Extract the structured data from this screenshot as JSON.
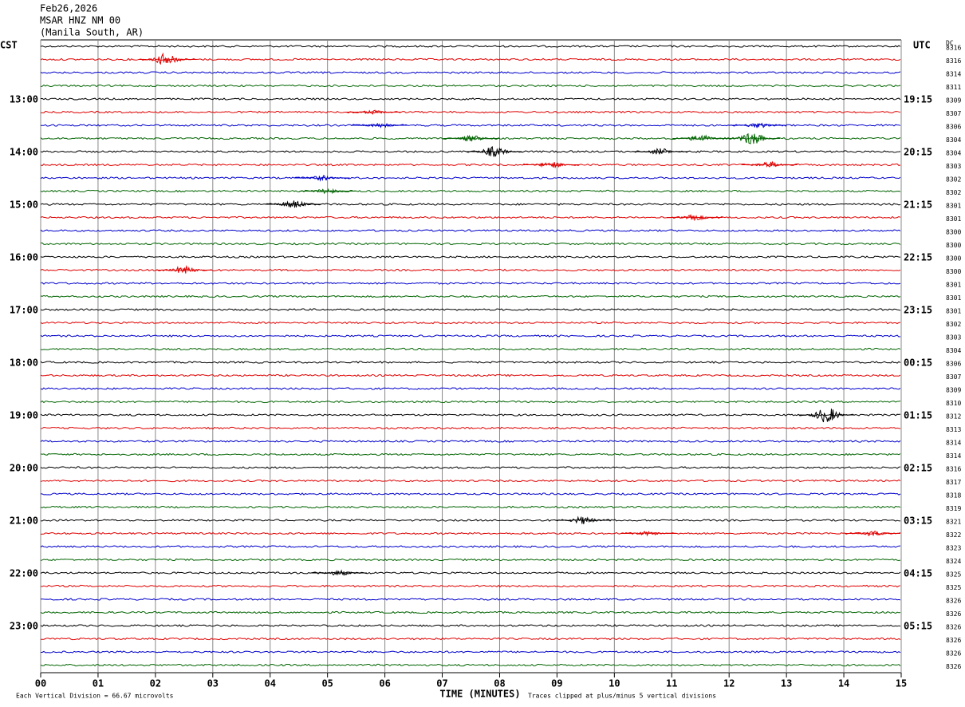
{
  "chart_data": {
    "type": "helicorder",
    "title": "Feb26,2026",
    "station": "MSAR HNZ NM 00",
    "location": "(Manila South, AR)",
    "left_axis_label": "CST",
    "right_axis_label": "UTC",
    "dc_label": "DC",
    "xlabel": "TIME (MINUTES)",
    "scale_note": "Each Vertical Division =   66.67 microvolts",
    "clip_note": "Traces clipped at plus/minus 5 vertical divisions",
    "xlim": [
      0,
      15
    ],
    "xticks": [
      {
        "value": 0,
        "label": "00"
      },
      {
        "value": 1,
        "label": "01"
      },
      {
        "value": 2,
        "label": "02"
      },
      {
        "value": 3,
        "label": "03"
      },
      {
        "value": 4,
        "label": "04"
      },
      {
        "value": 5,
        "label": "05"
      },
      {
        "value": 6,
        "label": "06"
      },
      {
        "value": 7,
        "label": "07"
      },
      {
        "value": 8,
        "label": "08"
      },
      {
        "value": 9,
        "label": "09"
      },
      {
        "value": 10,
        "label": "10"
      },
      {
        "value": 11,
        "label": "11"
      },
      {
        "value": 12,
        "label": "12"
      },
      {
        "value": 13,
        "label": "13"
      },
      {
        "value": 14,
        "label": "14"
      },
      {
        "value": 15,
        "label": "15"
      }
    ],
    "grid": true,
    "colors": [
      "#000000",
      "#e00000",
      "#0000cc",
      "#006400"
    ],
    "rows": [
      {
        "dc": 8316
      },
      {
        "dc": 8316
      },
      {
        "dc": 8314
      },
      {
        "dc": 8311
      },
      {
        "cst": "13:00",
        "utc": "19:15",
        "dc": 8309
      },
      {
        "dc": 8307
      },
      {
        "dc": 8306
      },
      {
        "dc": 8304
      },
      {
        "cst": "14:00",
        "utc": "20:15",
        "dc": 8304
      },
      {
        "dc": 8303
      },
      {
        "dc": 8302
      },
      {
        "dc": 8302
      },
      {
        "cst": "15:00",
        "utc": "21:15",
        "dc": 8301
      },
      {
        "dc": 8301
      },
      {
        "dc": 8300
      },
      {
        "dc": 8300
      },
      {
        "cst": "16:00",
        "utc": "22:15",
        "dc": 8300
      },
      {
        "dc": 8300
      },
      {
        "dc": 8301
      },
      {
        "dc": 8301
      },
      {
        "cst": "17:00",
        "utc": "23:15",
        "dc": 8301
      },
      {
        "dc": 8302
      },
      {
        "dc": 8303
      },
      {
        "dc": 8304
      },
      {
        "cst": "18:00",
        "utc": "00:15",
        "dc": 8306
      },
      {
        "dc": 8307
      },
      {
        "dc": 8309
      },
      {
        "dc": 8310
      },
      {
        "cst": "19:00",
        "utc": "01:15",
        "dc": 8312
      },
      {
        "dc": 8313
      },
      {
        "dc": 8314
      },
      {
        "dc": 8314
      },
      {
        "cst": "20:00",
        "utc": "02:15",
        "dc": 8316
      },
      {
        "dc": 8317
      },
      {
        "dc": 8318
      },
      {
        "dc": 8319
      },
      {
        "cst": "21:00",
        "utc": "03:15",
        "dc": 8321
      },
      {
        "dc": 8322
      },
      {
        "dc": 8323
      },
      {
        "dc": 8324
      },
      {
        "cst": "22:00",
        "utc": "04:15",
        "dc": 8325
      },
      {
        "dc": 8325
      },
      {
        "dc": 8326
      },
      {
        "dc": 8326
      },
      {
        "cst": "23:00",
        "utc": "05:15",
        "dc": 8326
      },
      {
        "dc": 8326
      },
      {
        "dc": 8326
      },
      {
        "dc": 8326
      }
    ],
    "events": [
      {
        "row": 1,
        "minute": 2.2,
        "amplitude": 2.5
      },
      {
        "row": 5,
        "minute": 5.8,
        "amplitude": 0.8
      },
      {
        "row": 6,
        "minute": 5.9,
        "amplitude": 0.9
      },
      {
        "row": 6,
        "minute": 12.5,
        "amplitude": 1
      },
      {
        "row": 7,
        "minute": 7.5,
        "amplitude": 1.2
      },
      {
        "row": 7,
        "minute": 11.5,
        "amplitude": 1.4
      },
      {
        "row": 7,
        "minute": 12.4,
        "amplitude": 2.5
      },
      {
        "row": 8,
        "minute": 7.9,
        "amplitude": 2
      },
      {
        "row": 8,
        "minute": 10.8,
        "amplitude": 1.2
      },
      {
        "row": 9,
        "minute": 8.9,
        "amplitude": 1.2
      },
      {
        "row": 9,
        "minute": 12.7,
        "amplitude": 1.2
      },
      {
        "row": 10,
        "minute": 4.9,
        "amplitude": 1
      },
      {
        "row": 11,
        "minute": 5.0,
        "amplitude": 1
      },
      {
        "row": 12,
        "minute": 4.4,
        "amplitude": 1.5
      },
      {
        "row": 13,
        "minute": 11.4,
        "amplitude": 1
      },
      {
        "row": 17,
        "minute": 2.5,
        "amplitude": 1.5
      },
      {
        "row": 28,
        "minute": 13.7,
        "amplitude": 3
      },
      {
        "row": 36,
        "minute": 9.45,
        "amplitude": 1.5
      },
      {
        "row": 37,
        "minute": 10.6,
        "amplitude": 0.8
      },
      {
        "row": 37,
        "minute": 14.5,
        "amplitude": 1
      },
      {
        "row": 40,
        "minute": 5.2,
        "amplitude": 1
      }
    ]
  }
}
